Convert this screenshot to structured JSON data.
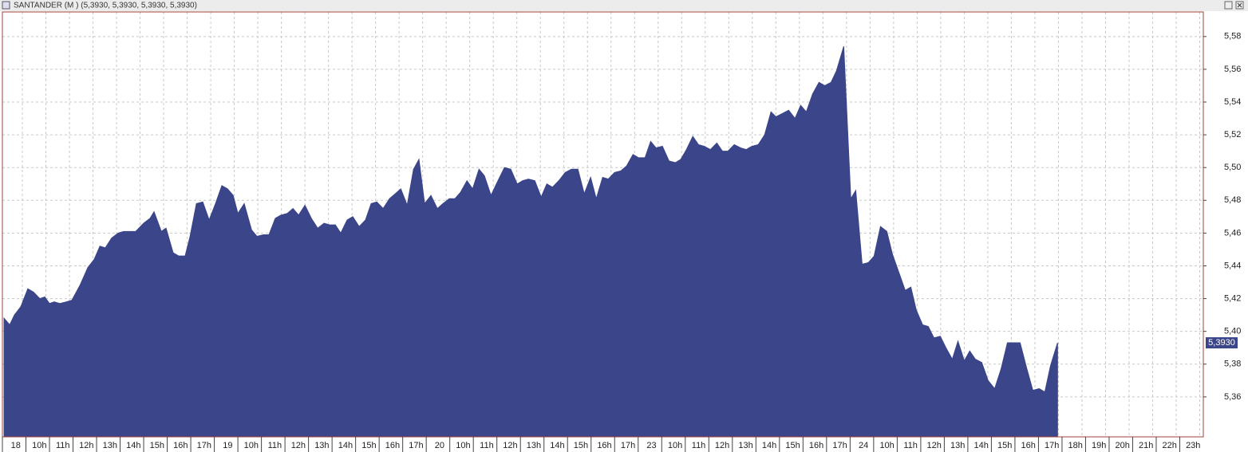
{
  "chart_data": {
    "type": "area",
    "title": "SANTANDER (M ) (5,3930, 5,3930, 5,3930, 5,3930)",
    "color": "#3b4589",
    "grid": true,
    "last_value_label": {
      "value": 5.393,
      "label": "5,3930"
    },
    "xlim": [
      0,
      51
    ],
    "xticks": [
      {
        "value": 0,
        "label": "18"
      },
      {
        "value": 1,
        "label": "10h"
      },
      {
        "value": 2,
        "label": "11h"
      },
      {
        "value": 3,
        "label": "12h"
      },
      {
        "value": 4,
        "label": "13h"
      },
      {
        "value": 5,
        "label": "14h"
      },
      {
        "value": 6,
        "label": "15h"
      },
      {
        "value": 7,
        "label": "16h"
      },
      {
        "value": 8,
        "label": "17h"
      },
      {
        "value": 9,
        "label": "19"
      },
      {
        "value": 10,
        "label": "10h"
      },
      {
        "value": 11,
        "label": "11h"
      },
      {
        "value": 12,
        "label": "12h"
      },
      {
        "value": 13,
        "label": "13h"
      },
      {
        "value": 14,
        "label": "14h"
      },
      {
        "value": 15,
        "label": "15h"
      },
      {
        "value": 16,
        "label": "16h"
      },
      {
        "value": 17,
        "label": "17h"
      },
      {
        "value": 18,
        "label": "20"
      },
      {
        "value": 19,
        "label": "10h"
      },
      {
        "value": 20,
        "label": "11h"
      },
      {
        "value": 21,
        "label": "12h"
      },
      {
        "value": 22,
        "label": "13h"
      },
      {
        "value": 23,
        "label": "14h"
      },
      {
        "value": 24,
        "label": "15h"
      },
      {
        "value": 25,
        "label": "16h"
      },
      {
        "value": 26,
        "label": "17h"
      },
      {
        "value": 27,
        "label": "23"
      },
      {
        "value": 28,
        "label": "10h"
      },
      {
        "value": 29,
        "label": "11h"
      },
      {
        "value": 30,
        "label": "12h"
      },
      {
        "value": 31,
        "label": "13h"
      },
      {
        "value": 32,
        "label": "14h"
      },
      {
        "value": 33,
        "label": "15h"
      },
      {
        "value": 34,
        "label": "16h"
      },
      {
        "value": 35,
        "label": "17h"
      },
      {
        "value": 36,
        "label": "24"
      },
      {
        "value": 37,
        "label": "10h"
      },
      {
        "value": 38,
        "label": "11h"
      },
      {
        "value": 39,
        "label": "12h"
      },
      {
        "value": 40,
        "label": "13h"
      },
      {
        "value": 41,
        "label": "14h"
      },
      {
        "value": 42,
        "label": "15h"
      },
      {
        "value": 43,
        "label": "16h"
      },
      {
        "value": 44,
        "label": "17h"
      },
      {
        "value": 45,
        "label": "18h"
      },
      {
        "value": 46,
        "label": "19h"
      },
      {
        "value": 47,
        "label": "20h"
      },
      {
        "value": 48,
        "label": "21h"
      },
      {
        "value": 49,
        "label": "22h"
      },
      {
        "value": 50,
        "label": "23h"
      }
    ],
    "ylim": [
      5.3356,
      5.595
    ],
    "yticks": [
      {
        "value": 5.36,
        "label": "5,36"
      },
      {
        "value": 5.38,
        "label": "5,38"
      },
      {
        "value": 5.4,
        "label": "5,40"
      },
      {
        "value": 5.42,
        "label": "5,42"
      },
      {
        "value": 5.44,
        "label": "5,44"
      },
      {
        "value": 5.46,
        "label": "5,46"
      },
      {
        "value": 5.48,
        "label": "5,48"
      },
      {
        "value": 5.5,
        "label": "5,50"
      },
      {
        "value": 5.52,
        "label": "5,52"
      },
      {
        "value": 5.54,
        "label": "5,54"
      },
      {
        "value": 5.56,
        "label": "5,56"
      },
      {
        "value": 5.58,
        "label": "5,58"
      }
    ],
    "x": [
      0.07,
      0.31,
      0.51,
      0.78,
      1.08,
      1.32,
      1.59,
      1.8,
      2.0,
      2.2,
      2.44,
      2.71,
      2.95,
      3.29,
      3.63,
      3.9,
      4.14,
      4.37,
      4.64,
      4.92,
      5.15,
      5.66,
      6.0,
      6.27,
      6.44,
      6.75,
      6.95,
      7.25,
      7.49,
      7.76,
      7.97,
      8.24,
      8.51,
      8.78,
      9.05,
      9.32,
      9.56,
      9.8,
      10.0,
      10.27,
      10.58,
      10.81,
      11.08,
      11.32,
      11.59,
      11.83,
      12.1,
      12.34,
      12.58,
      12.85,
      13.12,
      13.39,
      13.66,
      13.9,
      14.14,
      14.37,
      14.64,
      14.88,
      15.15,
      15.42,
      15.66,
      15.9,
      16.17,
      16.44,
      16.68,
      16.92,
      17.19,
      17.46,
      17.69,
      17.93,
      18.2,
      18.47,
      18.71,
      18.98,
      19.22,
      19.46,
      19.73,
      19.97,
      20.24,
      20.47,
      20.75,
      20.98,
      21.32,
      21.59,
      21.86,
      22.1,
      22.34,
      22.61,
      22.88,
      23.12,
      23.36,
      23.63,
      23.9,
      24.17,
      24.44,
      24.71,
      24.98,
      25.22,
      25.49,
      25.73,
      26.0,
      26.27,
      26.51,
      26.78,
      27.02,
      27.29,
      27.53,
      27.76,
      28.03,
      28.31,
      28.58,
      28.81,
      29.05,
      29.32,
      29.56,
      29.8,
      30.07,
      30.34,
      30.58,
      30.81,
      31.08,
      31.36,
      31.59,
      31.83,
      32.1,
      32.37,
      32.64,
      32.85,
      33.12,
      33.39,
      33.66,
      33.9,
      34.14,
      34.41,
      34.68,
      34.92,
      35.19,
      35.42,
      35.73,
      36.03,
      36.24,
      36.51,
      36.78,
      37.02,
      37.29,
      37.56,
      37.8,
      38.07,
      38.34,
      38.58,
      38.81,
      39.08,
      39.32,
      39.56,
      39.83,
      40.07,
      40.34,
      40.58,
      40.85,
      41.08,
      41.32,
      41.59,
      41.86,
      42.14,
      42.41,
      42.68,
      43.22,
      43.49,
      43.76,
      44.03,
      44.27,
      44.51,
      44.81
    ],
    "values": [
      5.408,
      5.404,
      5.41,
      5.415,
      5.426,
      5.424,
      5.42,
      5.421,
      5.417,
      5.418,
      5.417,
      5.418,
      5.419,
      5.428,
      5.439,
      5.444,
      5.452,
      5.451,
      5.457,
      5.46,
      5.461,
      5.461,
      5.466,
      5.469,
      5.473,
      5.461,
      5.463,
      5.448,
      5.446,
      5.446,
      5.458,
      5.478,
      5.479,
      5.468,
      5.478,
      5.489,
      5.487,
      5.483,
      5.472,
      5.478,
      5.462,
      5.458,
      5.459,
      5.459,
      5.469,
      5.471,
      5.472,
      5.475,
      5.471,
      5.477,
      5.469,
      5.463,
      5.466,
      5.465,
      5.465,
      5.46,
      5.468,
      5.47,
      5.464,
      5.468,
      5.478,
      5.479,
      5.475,
      5.481,
      5.484,
      5.487,
      5.477,
      5.499,
      5.505,
      5.478,
      5.483,
      5.475,
      5.478,
      5.481,
      5.481,
      5.485,
      5.492,
      5.487,
      5.499,
      5.495,
      5.483,
      5.49,
      5.5,
      5.499,
      5.49,
      5.492,
      5.493,
      5.492,
      5.482,
      5.49,
      5.488,
      5.492,
      5.497,
      5.499,
      5.499,
      5.484,
      5.494,
      5.481,
      5.494,
      5.493,
      5.497,
      5.498,
      5.501,
      5.508,
      5.506,
      5.506,
      5.516,
      5.512,
      5.513,
      5.504,
      5.503,
      5.505,
      5.511,
      5.519,
      5.514,
      5.513,
      5.511,
      5.515,
      5.51,
      5.51,
      5.514,
      5.512,
      5.511,
      5.513,
      5.514,
      5.52,
      5.534,
      5.531,
      5.533,
      5.535,
      5.53,
      5.538,
      5.534,
      5.545,
      5.552,
      5.55,
      5.552,
      5.559,
      5.574,
      5.481,
      5.486,
      5.441,
      5.442,
      5.446,
      5.464,
      5.461,
      5.447,
      5.436,
      5.425,
      5.427,
      5.413,
      5.404,
      5.403,
      5.396,
      5.397,
      5.39,
      5.383,
      5.394,
      5.382,
      5.388,
      5.383,
      5.381,
      5.37,
      5.365,
      5.377,
      5.393,
      5.393,
      5.378,
      5.364,
      5.365,
      5.363,
      5.379,
      5.393
    ]
  }
}
